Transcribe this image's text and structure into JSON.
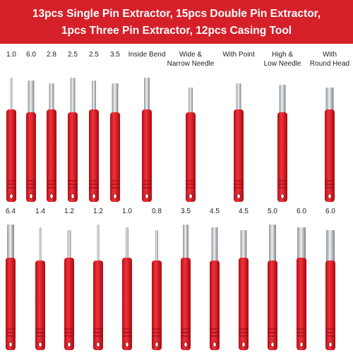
{
  "header": {
    "title_lines": [
      "13pcs Single Pin Extractor, 15pcs Double Pin Extractor,",
      "1pcs Three Pin Extractor, 12pcs Casing Tool"
    ]
  },
  "top_row": {
    "labels": [
      [
        "1.0"
      ],
      [
        "6.0"
      ],
      [
        "2.8"
      ],
      [
        "2.5"
      ],
      [
        "2.5"
      ],
      [
        "3.5"
      ],
      [
        "Inside Bend"
      ],
      [
        "Wide &",
        "Narrow Needle"
      ],
      [
        "With Point"
      ],
      [
        "High &",
        "Low Needle"
      ],
      [
        "With",
        "Round Head"
      ]
    ]
  },
  "bottom_row": {
    "labels": [
      [
        "6.4"
      ],
      [
        "1.4"
      ],
      [
        "1.2"
      ],
      [
        "1.2"
      ],
      [
        "1.0"
      ],
      [
        "0.8"
      ],
      [
        "3.5"
      ],
      [
        "4.5"
      ],
      [
        "4.5"
      ],
      [
        "5.0"
      ],
      [
        "6.0"
      ],
      [
        "6.0"
      ]
    ]
  }
}
